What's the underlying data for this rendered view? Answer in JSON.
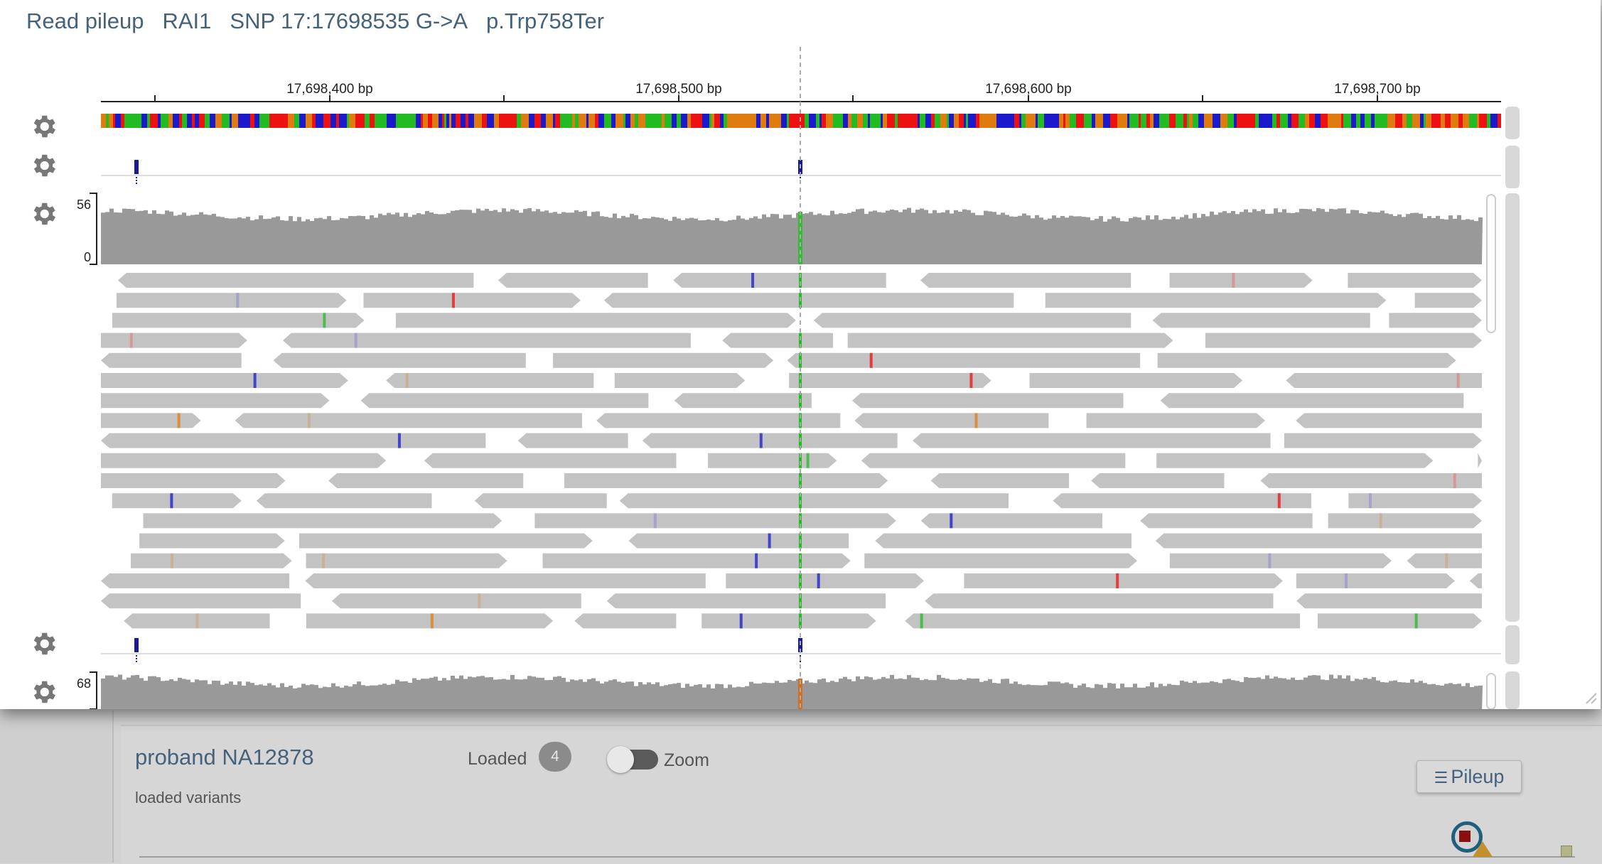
{
  "modal": {
    "title_parts": [
      "Read pileup",
      "RAI1",
      "SNP 17:17698535 G->A",
      "p.Trp758Ter"
    ]
  },
  "ruler": {
    "ticks": [
      "17,698,400 bp",
      "17,698,500 bp",
      "17,698,600 bp",
      "17,698,700 bp"
    ]
  },
  "coverage_tracks": [
    {
      "name": "coverage-1",
      "ymax": "56",
      "ymin": "0",
      "variant_color": "#33bb33"
    },
    {
      "name": "coverage-2",
      "ymax": "68",
      "variant_color": "#d07020"
    }
  ],
  "colors": {
    "title": "#44627c",
    "read": "#c3c3c3",
    "coverage": "#999999",
    "variant_line": "#aaaaaa",
    "base_A": "#22bb22",
    "base_C": "#1a1acc",
    "base_G": "#e07b10",
    "base_T": "#ee1111"
  },
  "background_app": {
    "sample_title": "proband NA12878",
    "subtitle": "loaded variants",
    "loaded_label": "Loaded",
    "loaded_count": "4",
    "zoom_label": "Zoom",
    "pileup_button": "Pileup",
    "pileup_icon": "list-icon"
  }
}
